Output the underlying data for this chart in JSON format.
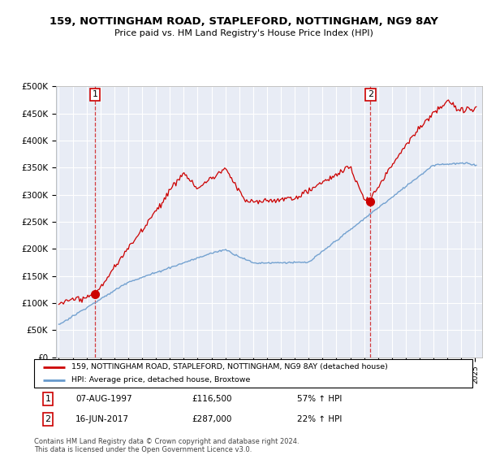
{
  "title": "159, NOTTINGHAM ROAD, STAPLEFORD, NOTTINGHAM, NG9 8AY",
  "subtitle": "Price paid vs. HM Land Registry's House Price Index (HPI)",
  "ylim": [
    0,
    500000
  ],
  "yticks": [
    0,
    50000,
    100000,
    150000,
    200000,
    250000,
    300000,
    350000,
    400000,
    450000,
    500000
  ],
  "ytick_labels": [
    "£0",
    "£50K",
    "£100K",
    "£150K",
    "£200K",
    "£250K",
    "£300K",
    "£350K",
    "£400K",
    "£450K",
    "£500K"
  ],
  "xlim_start": 1994.8,
  "xlim_end": 2025.5,
  "sale1_year": 1997.6,
  "sale1_price": 116500,
  "sale1_label": "1",
  "sale1_date": "07-AUG-1997",
  "sale1_amount": "£116,500",
  "sale1_hpi": "57% ↑ HPI",
  "sale2_year": 2017.45,
  "sale2_price": 287000,
  "sale2_label": "2",
  "sale2_date": "16-JUN-2017",
  "sale2_amount": "£287,000",
  "sale2_hpi": "22% ↑ HPI",
  "line_color_red": "#cc0000",
  "line_color_blue": "#6699cc",
  "bg_color": "#e8ecf5",
  "grid_color": "#ffffff",
  "legend_label_red": "159, NOTTINGHAM ROAD, STAPLEFORD, NOTTINGHAM, NG9 8AY (detached house)",
  "legend_label_blue": "HPI: Average price, detached house, Broxtowe",
  "footer": "Contains HM Land Registry data © Crown copyright and database right 2024.\nThis data is licensed under the Open Government Licence v3.0."
}
